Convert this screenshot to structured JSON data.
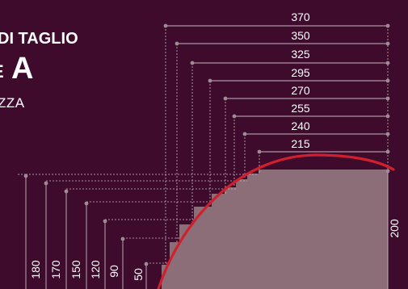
{
  "title": {
    "line1": "DI TAGLIO",
    "line2_small": "E",
    "line2_big": "A",
    "line3": "ZZA"
  },
  "widths": [
    "370",
    "350",
    "325",
    "295",
    "270",
    "255",
    "240",
    "215"
  ],
  "heights": [
    "180",
    "170",
    "150",
    "120",
    "90",
    "50"
  ],
  "right_height": "200",
  "colors": {
    "background": "#3f0b2c",
    "shape": "#8b6e77",
    "arc": "#d0202e",
    "dim_line": "#c8b6c0",
    "dot": "#9d8c94"
  }
}
